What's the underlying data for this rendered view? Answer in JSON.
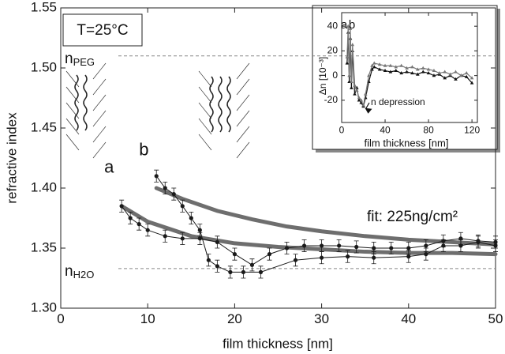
{
  "chart_data": [
    {
      "type": "line",
      "title": "T=25°C",
      "xlabel": "film thickness [nm]",
      "ylabel": "refractive index",
      "xlim": [
        0,
        50
      ],
      "ylim": [
        1.3,
        1.55
      ],
      "xticks": [
        0,
        10,
        20,
        30,
        40,
        50
      ],
      "yticks": [
        {
          "value": 1.3,
          "label": "1.30"
        },
        1.35,
        {
          "value": 1.4,
          "label": "1.40"
        },
        1.45,
        {
          "value": 1.5,
          "label": "1.50"
        },
        1.55
      ],
      "reference_lines": [
        {
          "value": 1.51,
          "label": "n",
          "sub": "PEG"
        },
        {
          "value": 1.333,
          "label": "n",
          "sub": "H2O"
        }
      ],
      "annotation": "fit: 225ng/cm²",
      "series": [
        {
          "name": "a",
          "color": "#1a1a1a",
          "error": 0.005,
          "x": [
            7,
            8,
            9,
            10,
            12,
            14,
            16,
            18,
            20,
            22,
            24,
            26,
            28,
            30,
            32,
            34,
            36,
            38,
            40,
            42,
            44,
            46,
            48,
            50
          ],
          "values": [
            1.385,
            1.375,
            1.37,
            1.365,
            1.36,
            1.358,
            1.358,
            1.355,
            1.345,
            1.336,
            1.345,
            1.35,
            1.352,
            1.352,
            1.352,
            1.351,
            1.35,
            1.35,
            1.35,
            1.352,
            1.356,
            1.358,
            1.356,
            1.355
          ]
        },
        {
          "name": "b",
          "color": "#1a1a1a",
          "error": 0.005,
          "x": [
            11,
            12,
            13,
            14,
            15,
            16,
            17,
            18,
            19.5,
            21,
            23,
            27,
            30,
            33,
            36,
            40,
            42,
            44,
            46,
            48,
            50
          ],
          "values": [
            1.41,
            1.4,
            1.395,
            1.385,
            1.375,
            1.365,
            1.34,
            1.335,
            1.33,
            1.33,
            1.33,
            1.34,
            1.342,
            1.343,
            1.342,
            1.343,
            1.345,
            1.352,
            1.352,
            1.355,
            1.352
          ]
        }
      ],
      "fits": [
        {
          "color": "#6e6e6e",
          "x": [
            7,
            10,
            15,
            20,
            25,
            30,
            35,
            40,
            45,
            50
          ],
          "values": [
            1.385,
            1.372,
            1.36,
            1.354,
            1.351,
            1.349,
            1.347,
            1.346,
            1.346,
            1.345
          ]
        },
        {
          "color": "#6e6e6e",
          "x": [
            11,
            14,
            18,
            22,
            26,
            30,
            35,
            40,
            45,
            50
          ],
          "values": [
            1.4,
            1.391,
            1.381,
            1.374,
            1.368,
            1.364,
            1.36,
            1.357,
            1.355,
            1.353
          ]
        }
      ]
    },
    {
      "type": "line",
      "xlabel": "film thickness [nm]",
      "ylabel": "Δn [10⁻³]",
      "xlim": [
        0,
        125
      ],
      "ylim": [
        -38,
        51
      ],
      "xticks": [
        0,
        40,
        80,
        120
      ],
      "yticks": [
        -20,
        0,
        20,
        40
      ],
      "annotation": "n depression",
      "annotation_x": 20,
      "annotation_y": -25,
      "series": [
        {
          "name": "a",
          "color": "#111111",
          "x": [
            5,
            6,
            7,
            8,
            9,
            10,
            12,
            14,
            16,
            18,
            20,
            22,
            25,
            28,
            30,
            35,
            40,
            45,
            50,
            55,
            60,
            65,
            70,
            75,
            80,
            85,
            90,
            95,
            100,
            105,
            110,
            115,
            120
          ],
          "values": [
            10,
            35,
            -5,
            30,
            -10,
            20,
            -15,
            -10,
            -20,
            -22,
            -25,
            -18,
            -5,
            5,
            7,
            5,
            4,
            3,
            4,
            2,
            3,
            2,
            1,
            3,
            2,
            0,
            1,
            -2,
            0,
            -3,
            0,
            -1,
            -6
          ]
        },
        {
          "name": "b",
          "color": "#777777",
          "x": [
            5,
            6,
            7,
            8,
            9,
            10,
            12,
            14,
            16,
            18,
            20,
            22,
            25,
            28,
            30,
            35,
            40,
            45,
            50,
            55,
            60,
            65,
            70,
            75,
            80,
            85,
            90,
            95,
            100,
            105,
            110,
            115,
            120
          ],
          "values": [
            15,
            40,
            0,
            38,
            -5,
            25,
            -8,
            -12,
            -18,
            -20,
            -24,
            -15,
            0,
            8,
            10,
            9,
            8,
            8,
            7,
            8,
            6,
            7,
            5,
            6,
            5,
            4,
            2,
            3,
            1,
            3,
            0,
            2,
            -2
          ]
        }
      ]
    }
  ]
}
